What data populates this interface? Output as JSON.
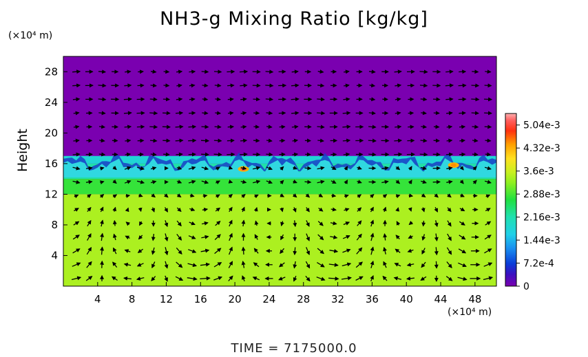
{
  "chart_data": {
    "type": "heatmap",
    "title": "NH3-g Mixing Ratio [kg/kg]",
    "ylabel": "Height",
    "y_unit": "(×10⁴ m)",
    "x_unit": "(×10⁴ m)",
    "xlim": [
      0,
      50.5
    ],
    "ylim": [
      0,
      30
    ],
    "x_ticks": [
      4,
      8,
      12,
      16,
      20,
      24,
      28,
      32,
      36,
      40,
      44,
      48
    ],
    "y_ticks": [
      4,
      8,
      12,
      16,
      20,
      24,
      28
    ],
    "colorbar": {
      "labels": [
        "0",
        "7.2e-4",
        "1.44e-3",
        "2.16e-3",
        "2.88e-3",
        "3.6e-3",
        "4.32e-3",
        "5.04e-3"
      ],
      "values": [
        0,
        0.00072,
        0.00144,
        0.00216,
        0.00288,
        0.0036,
        0.00432,
        0.00504
      ],
      "max": 0.0054
    },
    "profile": [
      {
        "height_min": 17,
        "height_max": 30,
        "ratio": 0.0
      },
      {
        "height_min": 16,
        "height_max": 17,
        "ratio": 0.0018
      },
      {
        "height_min": 14,
        "height_max": 16,
        "ratio": 0.0022
      },
      {
        "height_min": 12,
        "height_max": 14,
        "ratio": 0.0028
      },
      {
        "height_min": 0,
        "height_max": 12,
        "ratio": 0.0034
      }
    ],
    "hotspots": [
      {
        "x": 21,
        "height": 15.3,
        "ratio": 0.0051
      },
      {
        "x": 45.5,
        "height": 15.8,
        "ratio": 0.0045
      }
    ]
  },
  "time_label": "TIME = 7175000.0"
}
